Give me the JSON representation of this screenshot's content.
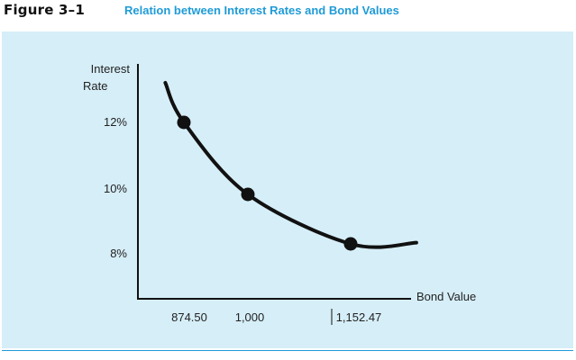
{
  "header": {
    "figure_label": "Figure 3–1",
    "figure_title": "Relation between Interest Rates and Bond Values"
  },
  "colors": {
    "title_blue": "#1f9bd7",
    "panel_bg": "#d6eef8",
    "ink": "#111111"
  },
  "chart_data": {
    "type": "line",
    "title": "Relation between Interest Rates and Bond Values",
    "ylabel_line1": "Interest",
    "ylabel_line2": "Rate",
    "xlabel": "Bond Value",
    "x_ticks": [
      "874.50",
      "1,000",
      "1,152.47"
    ],
    "y_ticks": [
      "12%",
      "10%",
      "8%"
    ],
    "points": [
      {
        "x": 874.5,
        "y": 12,
        "x_label": "874.50",
        "y_label": "12%"
      },
      {
        "x": 1000,
        "y": 10,
        "x_label": "1,000",
        "y_label": "10%"
      },
      {
        "x": 1152.47,
        "y": 8,
        "x_label": "1,152.47",
        "y_label": "8%"
      }
    ],
    "curve": [
      {
        "x": 838,
        "y": 13.1
      },
      {
        "x": 874.5,
        "y": 12
      },
      {
        "x": 1000,
        "y": 10
      },
      {
        "x": 1152.47,
        "y": 8
      },
      {
        "x": 1250,
        "y": 8.05
      }
    ],
    "grid": false,
    "legend": "none"
  }
}
